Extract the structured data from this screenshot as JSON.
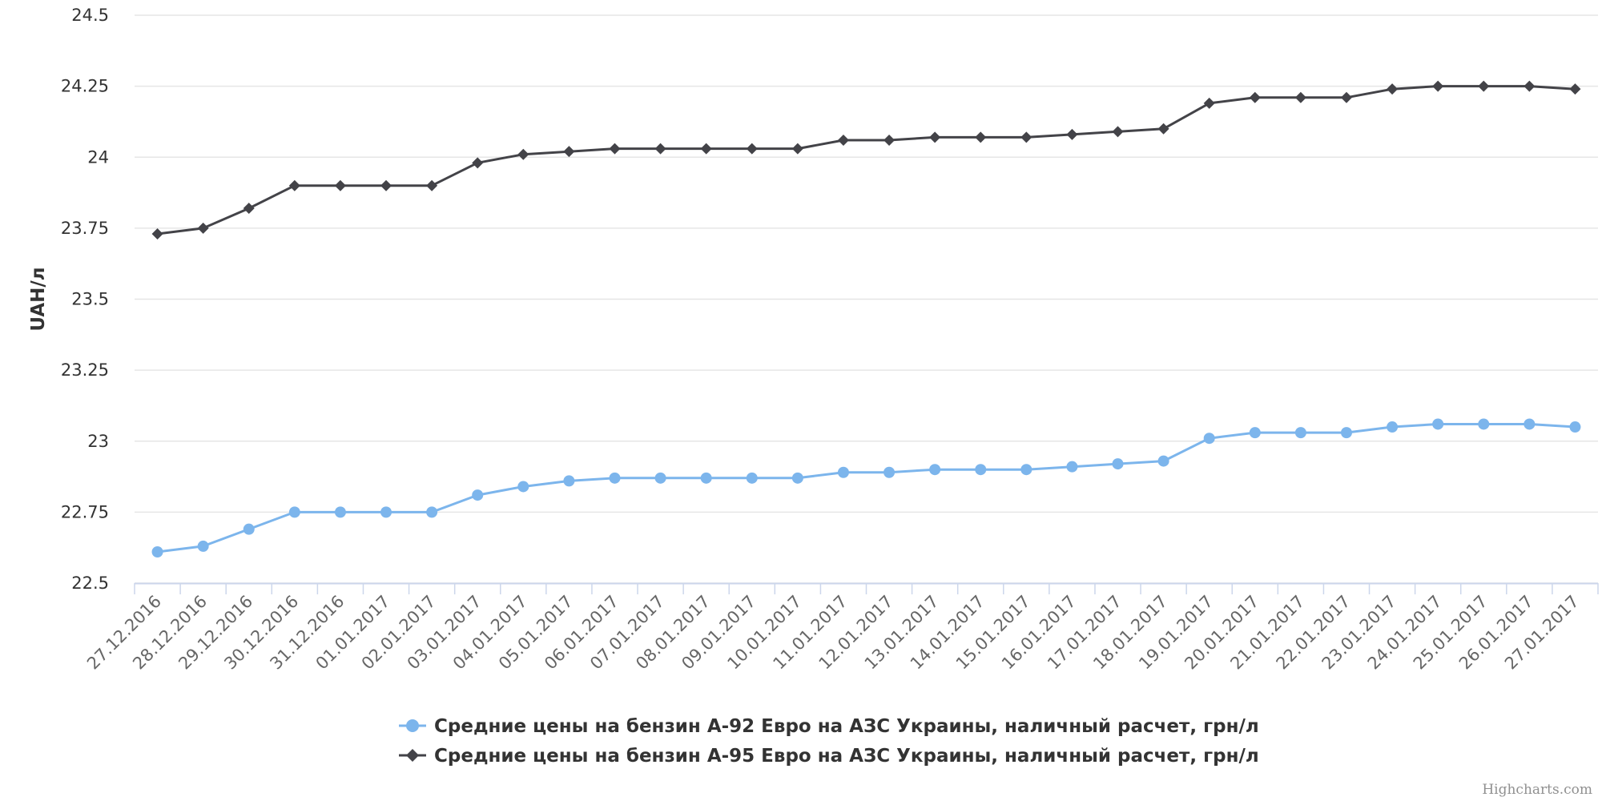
{
  "chart_data": {
    "type": "line",
    "ylabel": "UAH/л",
    "ylim": [
      22.5,
      24.5
    ],
    "yticks": [
      "22.5",
      "22.75",
      "23",
      "23.25",
      "23.5",
      "23.75",
      "24",
      "24.25",
      "24.5"
    ],
    "categories": [
      "27.12.2016",
      "28.12.2016",
      "29.12.2016",
      "30.12.2016",
      "31.12.2016",
      "01.01.2017",
      "02.01.2017",
      "03.01.2017",
      "04.01.2017",
      "05.01.2017",
      "06.01.2017",
      "07.01.2017",
      "08.01.2017",
      "09.01.2017",
      "10.01.2017",
      "11.01.2017",
      "12.01.2017",
      "13.01.2017",
      "14.01.2017",
      "15.01.2017",
      "16.01.2017",
      "17.01.2017",
      "18.01.2017",
      "19.01.2017",
      "20.01.2017",
      "21.01.2017",
      "22.01.2017",
      "23.01.2017",
      "24.01.2017",
      "25.01.2017",
      "26.01.2017",
      "27.01.2017"
    ],
    "series": [
      {
        "name": "Средние цены на бензин А-92 Евро на АЗС Украины, наличный расчет, грн/л",
        "color": "#7cb5ec",
        "marker": "circle",
        "values": [
          22.61,
          22.63,
          22.69,
          22.75,
          22.75,
          22.75,
          22.75,
          22.81,
          22.84,
          22.86,
          22.87,
          22.87,
          22.87,
          22.87,
          22.87,
          22.89,
          22.89,
          22.9,
          22.9,
          22.9,
          22.91,
          22.92,
          22.93,
          23.01,
          23.03,
          23.03,
          23.03,
          23.05,
          23.06,
          23.06,
          23.06,
          23.05
        ]
      },
      {
        "name": "Средние цены на бензин А-95 Евро на АЗС Украины, наличный расчет, грн/л",
        "color": "#434348",
        "marker": "diamond",
        "values": [
          23.73,
          23.75,
          23.82,
          23.9,
          23.9,
          23.9,
          23.9,
          23.98,
          24.01,
          24.02,
          24.03,
          24.03,
          24.03,
          24.03,
          24.03,
          24.06,
          24.06,
          24.07,
          24.07,
          24.07,
          24.08,
          24.09,
          24.1,
          24.19,
          24.21,
          24.21,
          24.21,
          24.24,
          24.25,
          24.25,
          24.25,
          24.24
        ]
      }
    ],
    "legend": "bottom-center",
    "grid": true
  },
  "credits": "Highcharts.com"
}
